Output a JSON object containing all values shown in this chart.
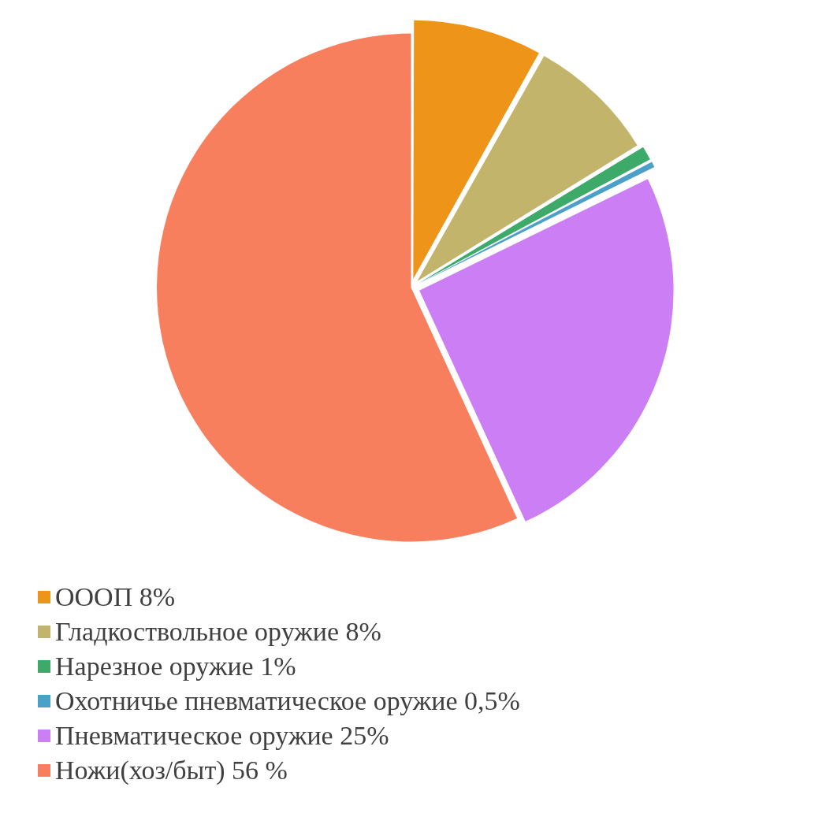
{
  "chart_data": {
    "type": "pie",
    "categories": [
      "ОООП",
      "Гладкоствольное оружие",
      "Нарезное оружие",
      "Охотничье пневматическое оружие",
      "Пневматическое оружие",
      "Ножи(хоз/быт)"
    ],
    "values": [
      8,
      8,
      1,
      0.5,
      25,
      56
    ],
    "value_labels": [
      "8%",
      "8%",
      "1%",
      "0,5%",
      "25%",
      "56 %"
    ],
    "colors": [
      "#ee9418",
      "#c2b46a",
      "#3daa6a",
      "#4aa0c8",
      "#cc7ef5",
      "#f77f5e"
    ],
    "legend": "bottom"
  }
}
